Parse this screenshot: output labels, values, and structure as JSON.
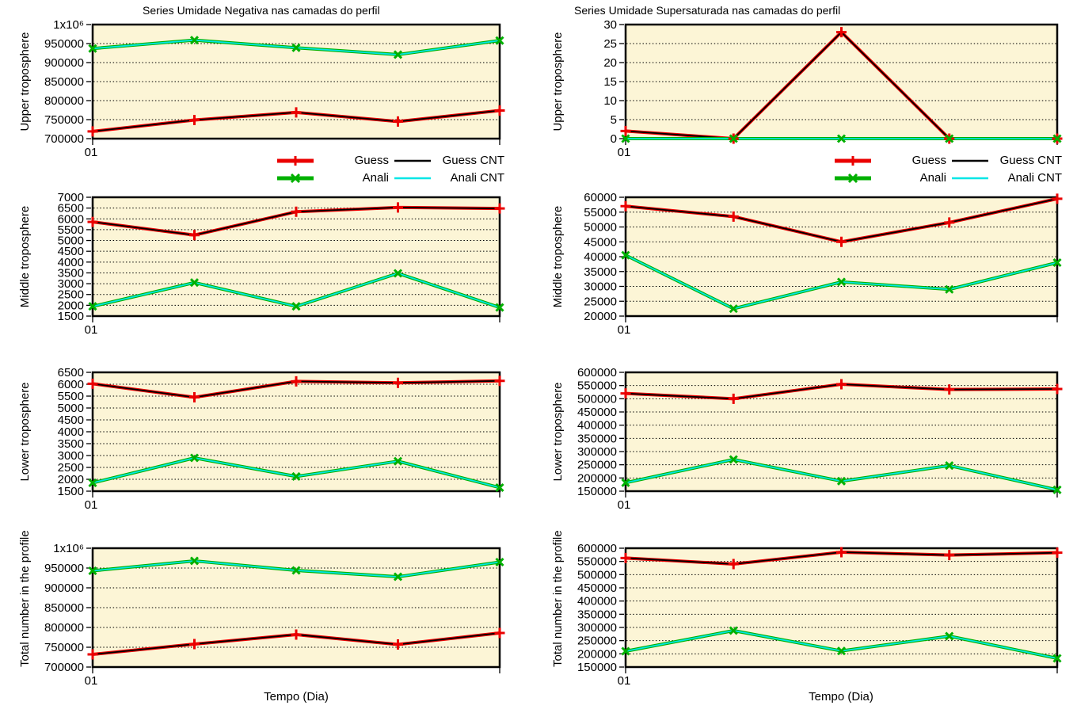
{
  "page": {
    "background": "#ffffff"
  },
  "titles": {
    "left": "Series Umidade Negativa nas camadas do perfil",
    "right": "Series Umidade Supersaturada nas camadas do perfil"
  },
  "xlabel": "Tempo (Dia)",
  "style": {
    "plot_bg": "#fcf5d6",
    "grid_color": "#000000",
    "red": "#ea0000",
    "green": "#00b000",
    "cyan": "#00e6e6",
    "black": "#000000"
  },
  "legend": {
    "entries": [
      {
        "label": "Guess",
        "color": "#ea0000",
        "marker": "plus"
      },
      {
        "label": "Anali",
        "color": "#00b000",
        "marker": "cross"
      },
      {
        "label": "Guess CNT",
        "color": "#000000",
        "marker": "none"
      },
      {
        "label": "Anali CNT",
        "color": "#00e6e6",
        "marker": "none"
      }
    ]
  },
  "chart_data": [
    {
      "id": "negativa-upper",
      "type": "line",
      "col": 0,
      "row": 0,
      "ylabel": "Upper troposphere",
      "x": [
        1,
        2,
        3,
        4,
        5
      ],
      "x_tick_labels": [
        "01",
        "",
        "",
        "",
        ""
      ],
      "ylim": [
        700000,
        1000000
      ],
      "ytick_step": 50000,
      "grid": true,
      "ytick_labels": [
        "700000",
        "750000",
        "800000",
        "850000",
        "900000",
        "950000",
        "1x10⁶"
      ],
      "series": [
        {
          "name": "Guess",
          "color": "#ea0000",
          "marker": "plus",
          "width": 4,
          "values": [
            719000,
            749000,
            769000,
            745000,
            774000
          ]
        },
        {
          "name": "Guess CNT",
          "color": "#000000",
          "marker": "none",
          "width": 1.8,
          "values": [
            719000,
            749000,
            769000,
            745000,
            774000
          ]
        },
        {
          "name": "Anali",
          "color": "#00b000",
          "marker": "cross",
          "width": 4,
          "values": [
            937000,
            959000,
            939000,
            921000,
            958000
          ]
        },
        {
          "name": "Anali CNT",
          "color": "#00e6e6",
          "marker": "none",
          "width": 1.8,
          "values": [
            937000,
            959000,
            939000,
            921000,
            958000
          ]
        }
      ]
    },
    {
      "id": "supersaturada-upper",
      "type": "line",
      "col": 1,
      "row": 0,
      "ylabel": "Upper troposphere",
      "x": [
        1,
        2,
        3,
        4,
        5
      ],
      "x_tick_labels": [
        "01",
        "",
        "",
        "",
        ""
      ],
      "ylim": [
        0,
        30
      ],
      "ytick_step": 5,
      "grid": true,
      "ytick_labels": [
        "0",
        "5",
        "10",
        "15",
        "20",
        "25",
        "30"
      ],
      "series": [
        {
          "name": "Guess",
          "color": "#ea0000",
          "marker": "plus",
          "width": 4,
          "values": [
            2,
            0,
            28,
            0,
            0
          ]
        },
        {
          "name": "Guess CNT",
          "color": "#000000",
          "marker": "none",
          "width": 1.8,
          "values": [
            2,
            0,
            28,
            0,
            0
          ]
        },
        {
          "name": "Anali",
          "color": "#00b000",
          "marker": "cross",
          "width": 4,
          "values": [
            0,
            0,
            0,
            0,
            0
          ]
        },
        {
          "name": "Anali CNT",
          "color": "#00e6e6",
          "marker": "none",
          "width": 1.8,
          "values": [
            0,
            0,
            0,
            0,
            0
          ]
        }
      ]
    },
    {
      "id": "negativa-middle",
      "type": "line",
      "col": 0,
      "row": 1,
      "ylabel": "Middle troposphere",
      "x": [
        1,
        2,
        3,
        4,
        5
      ],
      "x_tick_labels": [
        "01",
        "",
        "",
        "",
        ""
      ],
      "ylim": [
        1500,
        7000
      ],
      "ytick_step": 500,
      "grid": true,
      "ytick_labels": [
        "1500",
        "2000",
        "2500",
        "3000",
        "3500",
        "4000",
        "4500",
        "5000",
        "5500",
        "6000",
        "6500",
        "7000"
      ],
      "series": [
        {
          "name": "Guess",
          "color": "#ea0000",
          "marker": "plus",
          "width": 4,
          "values": [
            5860,
            5250,
            6330,
            6530,
            6480
          ]
        },
        {
          "name": "Guess CNT",
          "color": "#000000",
          "marker": "none",
          "width": 1.8,
          "values": [
            5860,
            5250,
            6330,
            6530,
            6480
          ]
        },
        {
          "name": "Anali",
          "color": "#00b000",
          "marker": "cross",
          "width": 4,
          "values": [
            1950,
            3050,
            1950,
            3480,
            1900
          ]
        },
        {
          "name": "Anali CNT",
          "color": "#00e6e6",
          "marker": "none",
          "width": 1.8,
          "values": [
            1950,
            3050,
            1950,
            3480,
            1900
          ]
        }
      ]
    },
    {
      "id": "supersaturada-middle",
      "type": "line",
      "col": 1,
      "row": 1,
      "ylabel": "Middle troposphere",
      "x": [
        1,
        2,
        3,
        4,
        5
      ],
      "x_tick_labels": [
        "01",
        "",
        "",
        "",
        ""
      ],
      "ylim": [
        20000,
        60000
      ],
      "ytick_step": 5000,
      "grid": true,
      "ytick_labels": [
        "20000",
        "25000",
        "30000",
        "35000",
        "40000",
        "45000",
        "50000",
        "55000",
        "60000"
      ],
      "series": [
        {
          "name": "Guess",
          "color": "#ea0000",
          "marker": "plus",
          "width": 4,
          "values": [
            57000,
            53500,
            45000,
            51500,
            59500
          ]
        },
        {
          "name": "Guess CNT",
          "color": "#000000",
          "marker": "none",
          "width": 1.8,
          "values": [
            57000,
            53500,
            45000,
            51500,
            59500
          ]
        },
        {
          "name": "Anali",
          "color": "#00b000",
          "marker": "cross",
          "width": 4,
          "values": [
            40500,
            22500,
            31500,
            29000,
            38000
          ]
        },
        {
          "name": "Anali CNT",
          "color": "#00e6e6",
          "marker": "none",
          "width": 1.8,
          "values": [
            40500,
            22500,
            31500,
            29000,
            38000
          ]
        }
      ]
    },
    {
      "id": "negativa-lower",
      "type": "line",
      "col": 0,
      "row": 2,
      "ylabel": "Lower troposphere",
      "x": [
        1,
        2,
        3,
        4,
        5
      ],
      "x_tick_labels": [
        "01",
        "",
        "",
        "",
        ""
      ],
      "ylim": [
        1500,
        6500
      ],
      "ytick_step": 500,
      "grid": true,
      "ytick_labels": [
        "1500",
        "2000",
        "2500",
        "3000",
        "3500",
        "4000",
        "4500",
        "5000",
        "5500",
        "6000",
        "6500"
      ],
      "series": [
        {
          "name": "Guess",
          "color": "#ea0000",
          "marker": "plus",
          "width": 4,
          "values": [
            6020,
            5450,
            6120,
            6060,
            6140
          ]
        },
        {
          "name": "Guess CNT",
          "color": "#000000",
          "marker": "none",
          "width": 1.8,
          "values": [
            6020,
            5450,
            6120,
            6060,
            6140
          ]
        },
        {
          "name": "Anali",
          "color": "#00b000",
          "marker": "cross",
          "width": 4,
          "values": [
            1850,
            2900,
            2120,
            2760,
            1650
          ]
        },
        {
          "name": "Anali CNT",
          "color": "#00e6e6",
          "marker": "none",
          "width": 1.8,
          "values": [
            1850,
            2900,
            2120,
            2760,
            1650
          ]
        }
      ]
    },
    {
      "id": "supersaturada-lower",
      "type": "line",
      "col": 1,
      "row": 2,
      "ylabel": "Lower troposphere",
      "x": [
        1,
        2,
        3,
        4,
        5
      ],
      "x_tick_labels": [
        "01",
        "",
        "",
        "",
        ""
      ],
      "ylim": [
        150000,
        600000
      ],
      "ytick_step": 50000,
      "grid": true,
      "ytick_labels": [
        "150000",
        "200000",
        "250000",
        "300000",
        "350000",
        "400000",
        "450000",
        "500000",
        "550000",
        "600000"
      ],
      "series": [
        {
          "name": "Guess",
          "color": "#ea0000",
          "marker": "plus",
          "width": 4,
          "values": [
            520000,
            500000,
            555000,
            535000,
            537000
          ]
        },
        {
          "name": "Guess CNT",
          "color": "#000000",
          "marker": "none",
          "width": 1.8,
          "values": [
            520000,
            500000,
            555000,
            535000,
            537000
          ]
        },
        {
          "name": "Anali",
          "color": "#00b000",
          "marker": "cross",
          "width": 4,
          "values": [
            182000,
            270000,
            188000,
            247000,
            155000
          ]
        },
        {
          "name": "Anali CNT",
          "color": "#00e6e6",
          "marker": "none",
          "width": 1.8,
          "values": [
            182000,
            270000,
            188000,
            247000,
            155000
          ]
        }
      ]
    },
    {
      "id": "negativa-total",
      "type": "line",
      "col": 0,
      "row": 3,
      "ylabel": "Total number in the profile",
      "x": [
        1,
        2,
        3,
        4,
        5
      ],
      "x_tick_labels": [
        "01",
        "",
        "",
        "",
        ""
      ],
      "ylim": [
        700000,
        1000000
      ],
      "ytick_step": 50000,
      "grid": true,
      "ytick_labels": [
        "700000",
        "750000",
        "800000",
        "850000",
        "900000",
        "950000",
        "1x10⁶"
      ],
      "series": [
        {
          "name": "Guess",
          "color": "#ea0000",
          "marker": "plus",
          "width": 4,
          "values": [
            732000,
            758000,
            782000,
            757000,
            786000
          ]
        },
        {
          "name": "Guess CNT",
          "color": "#000000",
          "marker": "none",
          "width": 1.8,
          "values": [
            732000,
            758000,
            782000,
            757000,
            786000
          ]
        },
        {
          "name": "Anali",
          "color": "#00b000",
          "marker": "cross",
          "width": 4,
          "values": [
            943000,
            968000,
            944000,
            928000,
            965000
          ]
        },
        {
          "name": "Anali CNT",
          "color": "#00e6e6",
          "marker": "none",
          "width": 1.8,
          "values": [
            943000,
            968000,
            944000,
            928000,
            965000
          ]
        }
      ]
    },
    {
      "id": "supersaturada-total",
      "type": "line",
      "col": 1,
      "row": 3,
      "ylabel": "Total number in the profile",
      "x": [
        1,
        2,
        3,
        4,
        5
      ],
      "x_tick_labels": [
        "01",
        "",
        "",
        "",
        ""
      ],
      "ylim": [
        150000,
        600000
      ],
      "ytick_step": 50000,
      "grid": true,
      "ytick_labels": [
        "150000",
        "200000",
        "250000",
        "300000",
        "350000",
        "400000",
        "450000",
        "500000",
        "550000",
        "600000"
      ],
      "series": [
        {
          "name": "Guess",
          "color": "#ea0000",
          "marker": "plus",
          "width": 4,
          "values": [
            563000,
            540000,
            585000,
            574000,
            583000
          ]
        },
        {
          "name": "Guess CNT",
          "color": "#000000",
          "marker": "none",
          "width": 1.8,
          "values": [
            563000,
            540000,
            585000,
            574000,
            583000
          ]
        },
        {
          "name": "Anali",
          "color": "#00b000",
          "marker": "cross",
          "width": 4,
          "values": [
            210000,
            288000,
            211000,
            267000,
            183000
          ]
        },
        {
          "name": "Anali CNT",
          "color": "#00e6e6",
          "marker": "none",
          "width": 1.8,
          "values": [
            210000,
            288000,
            211000,
            267000,
            183000
          ]
        }
      ]
    }
  ]
}
